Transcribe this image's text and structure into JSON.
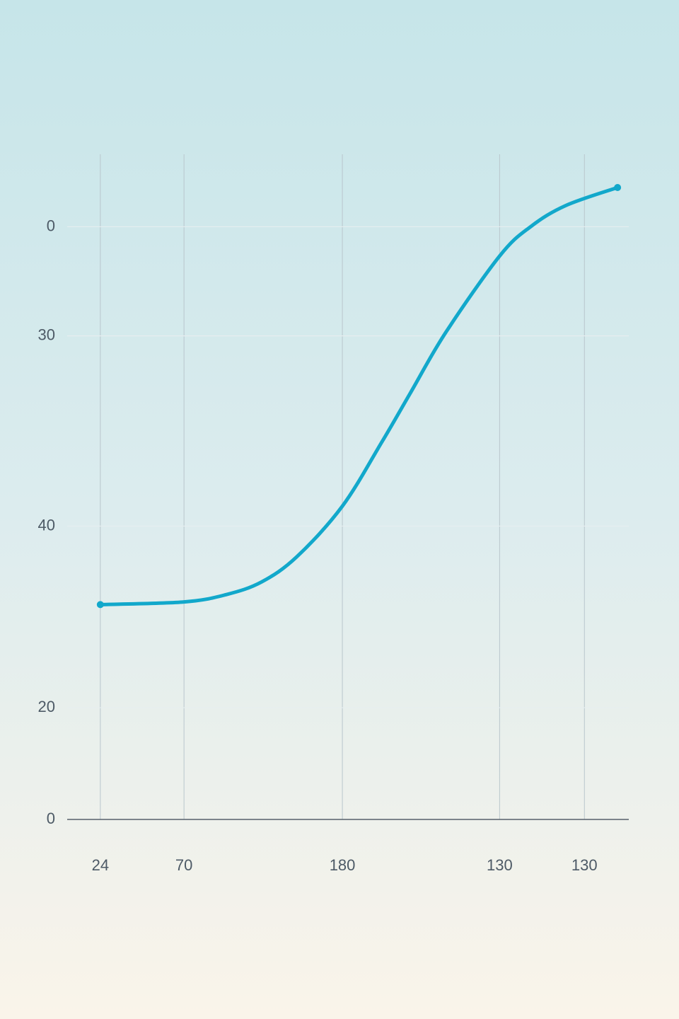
{
  "chart_data": {
    "type": "line",
    "x": [
      5.9,
      20.8,
      28.3,
      34.6,
      40.9,
      49.0,
      56.0,
      61.1,
      67.4,
      77.0,
      82.5,
      88.8,
      98.0
    ],
    "series": [
      {
        "color": "#12a8cb",
        "values": [
          32.3,
          32.7,
          33.8,
          35.7,
          39.5,
          47.1,
          56.7,
          64.1,
          73.2,
          84.7,
          89.1,
          92.3,
          95.0
        ]
      }
    ],
    "xlim": [
      0,
      100
    ],
    "xticks": [
      {
        "value": 5.9,
        "label": "24"
      },
      {
        "value": 20.8,
        "label": "70"
      },
      {
        "value": 49.0,
        "label": "180"
      },
      {
        "value": 77.0,
        "label": "130"
      },
      {
        "value": 92.1,
        "label": "130"
      }
    ],
    "ylim": [
      0,
      100
    ],
    "yticks": [
      0,
      {
        "value": 16.8,
        "label": "20"
      },
      {
        "value": 44.1,
        "label": "40"
      },
      {
        "value": 72.7,
        "label": "30"
      },
      {
        "value": 89.1,
        "label": "0"
      }
    ],
    "grid": true
  }
}
